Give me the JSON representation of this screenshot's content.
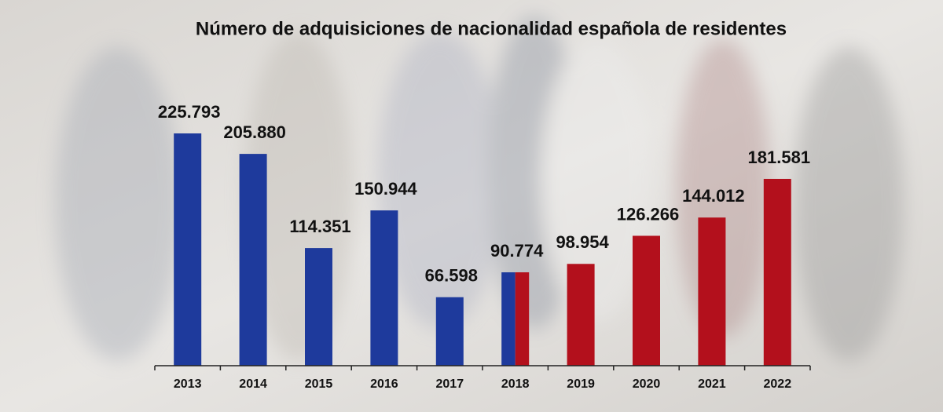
{
  "chart_data": {
    "type": "bar",
    "title": "Número de adquisiciones de nacionalidad española de residentes",
    "categories": [
      "2013",
      "2014",
      "2015",
      "2016",
      "2017",
      "2018",
      "2019",
      "2020",
      "2021",
      "2022"
    ],
    "values": [
      225793,
      205880,
      114351,
      150944,
      66598,
      90774,
      98954,
      126266,
      144012,
      181581
    ],
    "value_labels": [
      "225.793",
      "205.880",
      "114.351",
      "150.944",
      "66.598",
      "90.774",
      "98.954",
      "126.266",
      "144.012",
      "181.581"
    ],
    "colors": [
      "#1e3a9c",
      "#1e3a9c",
      "#1e3a9c",
      "#1e3a9c",
      "#1e3a9c",
      [
        "#1e3a9c",
        "#b3101c"
      ],
      "#b3101c",
      "#b3101c",
      "#b3101c",
      "#b3101c"
    ]
  }
}
